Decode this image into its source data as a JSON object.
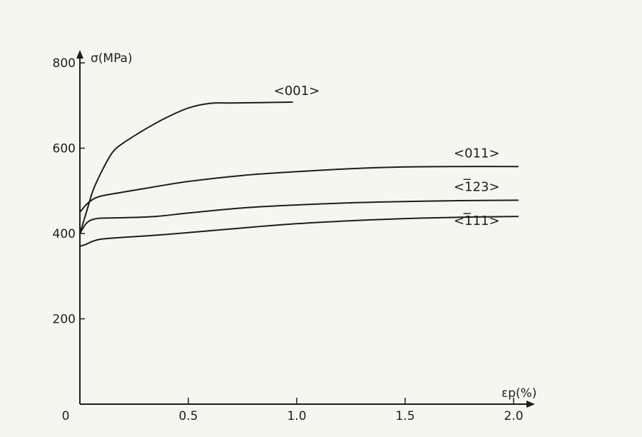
{
  "chart_data": {
    "type": "line",
    "title": "",
    "xlabel": "εp(%)",
    "ylabel": "σ(MPa)",
    "xlim": [
      0,
      2.0
    ],
    "ylim": [
      0,
      800
    ],
    "x_ticks": [
      {
        "value": 0,
        "label": "0"
      },
      {
        "value": 0.5,
        "label": "0.5"
      },
      {
        "value": 1.0,
        "label": "1.0"
      },
      {
        "value": 1.5,
        "label": "1.5"
      },
      {
        "value": 2.0,
        "label": "2.0"
      }
    ],
    "y_ticks": [
      {
        "value": 200,
        "label": "200"
      },
      {
        "value": 400,
        "label": "400"
      },
      {
        "value": 600,
        "label": "600"
      },
      {
        "value": 800,
        "label": "800"
      }
    ],
    "grid": false,
    "series": [
      {
        "name": "<001>",
        "points": [
          [
            0.0,
            400
          ],
          [
            0.03,
            450
          ],
          [
            0.06,
            500
          ],
          [
            0.1,
            545
          ],
          [
            0.15,
            590
          ],
          [
            0.2,
            612
          ],
          [
            0.3,
            644
          ],
          [
            0.4,
            672
          ],
          [
            0.5,
            694
          ],
          [
            0.6,
            705
          ],
          [
            0.7,
            706
          ],
          [
            0.85,
            707
          ],
          [
            0.98,
            708
          ]
        ]
      },
      {
        "name": "<011>",
        "points": [
          [
            0.0,
            450
          ],
          [
            0.03,
            468
          ],
          [
            0.06,
            480
          ],
          [
            0.1,
            488
          ],
          [
            0.2,
            497
          ],
          [
            0.35,
            510
          ],
          [
            0.5,
            522
          ],
          [
            0.75,
            536
          ],
          [
            1.0,
            545
          ],
          [
            1.25,
            552
          ],
          [
            1.5,
            556
          ],
          [
            1.75,
            557
          ],
          [
            2.02,
            557
          ]
        ]
      },
      {
        "name": "<-123>",
        "points": [
          [
            0.0,
            400
          ],
          [
            0.03,
            424
          ],
          [
            0.06,
            433
          ],
          [
            0.1,
            436
          ],
          [
            0.2,
            437
          ],
          [
            0.35,
            440
          ],
          [
            0.5,
            448
          ],
          [
            0.75,
            460
          ],
          [
            1.0,
            467
          ],
          [
            1.25,
            472
          ],
          [
            1.5,
            475
          ],
          [
            1.75,
            477
          ],
          [
            2.02,
            478
          ]
        ]
      },
      {
        "name": "<-111>",
        "points": [
          [
            0.0,
            370
          ],
          [
            0.03,
            375
          ],
          [
            0.06,
            382
          ],
          [
            0.1,
            387
          ],
          [
            0.2,
            391
          ],
          [
            0.35,
            396
          ],
          [
            0.5,
            402
          ],
          [
            0.75,
            413
          ],
          [
            1.0,
            423
          ],
          [
            1.25,
            430
          ],
          [
            1.5,
            435
          ],
          [
            1.75,
            438
          ],
          [
            2.02,
            440
          ]
        ]
      }
    ],
    "labels": [
      {
        "series": "<001>",
        "text": "<001>",
        "at": [
          1.0,
          725
        ]
      },
      {
        "series": "<011>",
        "text": "<011>",
        "at": [
          1.83,
          578
        ]
      },
      {
        "series": "<-123>",
        "text": "<123>",
        "bar_digit": "1",
        "at": [
          1.83,
          500
        ]
      },
      {
        "series": "<-111>",
        "text": "<111>",
        "bar_digit": "1",
        "at": [
          1.83,
          420
        ]
      }
    ]
  }
}
